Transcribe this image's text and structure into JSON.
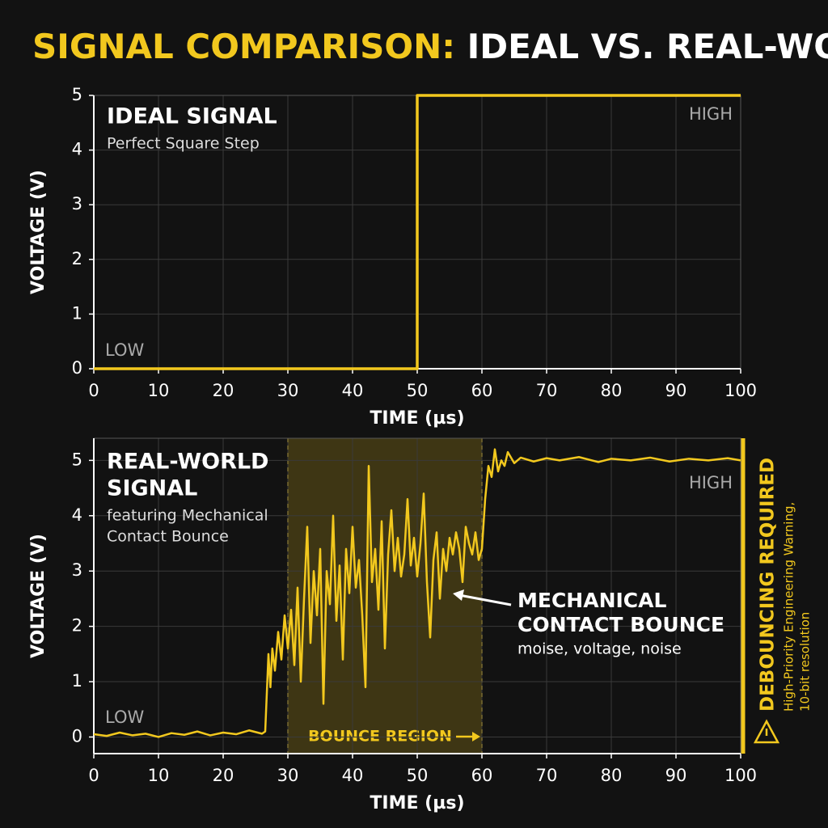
{
  "title": {
    "highlight": "SIGNAL COMPARISON:",
    "rest": "IDEAL VS. REAL-WORLD"
  },
  "chart_data": [
    {
      "type": "line",
      "xlabel": "TIME (µs)",
      "ylabel": "VOLTAGE (V)",
      "x": [
        0,
        50,
        50,
        100
      ],
      "series": [
        {
          "color": "#f2c81e",
          "values": [
            0,
            0,
            5,
            5
          ]
        }
      ],
      "xlim": [
        0,
        100
      ],
      "xticks": [
        0,
        10,
        20,
        30,
        40,
        50,
        60,
        70,
        80,
        90,
        100
      ],
      "ylim": [
        0,
        5
      ],
      "yticks": [
        0,
        1,
        2,
        3,
        4,
        5
      ],
      "grid": true,
      "panel_title": [
        "IDEAL SIGNAL"
      ],
      "panel_subtitle": [
        "Perfect Square Step"
      ],
      "high_label": "HIGH",
      "low_label": "LOW"
    },
    {
      "type": "line",
      "xlabel": "TIME (µs)",
      "ylabel": "VOLTAGE (V)",
      "x": [
        0,
        2,
        4,
        6,
        8,
        10,
        12,
        14,
        16,
        18,
        20,
        22,
        24,
        26,
        26.5,
        27,
        27.3,
        27.6,
        28,
        28.5,
        29,
        29.5,
        30,
        30.5,
        31,
        31.5,
        32,
        32.5,
        33,
        33.5,
        34,
        34.5,
        35,
        35.5,
        36,
        36.5,
        37,
        37.5,
        38,
        38.5,
        39,
        39.5,
        40,
        40.5,
        41,
        41.5,
        42,
        42.5,
        43,
        43.5,
        44,
        44.5,
        45,
        45.5,
        46,
        46.5,
        47,
        47.5,
        48,
        48.5,
        49,
        49.5,
        50,
        50.5,
        51,
        51.5,
        52,
        52.5,
        53,
        53.5,
        54,
        54.5,
        55,
        55.5,
        56,
        56.5,
        57,
        57.5,
        58,
        58.5,
        59,
        59.5,
        60,
        60.5,
        61,
        61.5,
        62,
        62.5,
        63,
        63.5,
        64,
        65,
        66,
        68,
        70,
        72,
        75,
        78,
        80,
        83,
        86,
        89,
        92,
        95,
        98,
        100
      ],
      "series": [
        {
          "color": "#f2c81e",
          "values": [
            0.05,
            0.02,
            0.08,
            0.03,
            0.06,
            0.0,
            0.07,
            0.04,
            0.1,
            0.03,
            0.08,
            0.05,
            0.12,
            0.06,
            0.1,
            1.5,
            0.9,
            1.6,
            1.2,
            1.9,
            1.4,
            2.2,
            1.6,
            2.3,
            1.3,
            2.7,
            1.0,
            2.5,
            3.8,
            1.7,
            3.0,
            2.2,
            3.4,
            0.6,
            3.0,
            2.4,
            4.0,
            2.1,
            3.1,
            1.4,
            3.4,
            2.6,
            3.8,
            2.7,
            3.2,
            2.2,
            0.9,
            4.9,
            2.8,
            3.4,
            2.3,
            3.9,
            1.6,
            3.3,
            4.1,
            3.0,
            3.6,
            2.9,
            3.3,
            4.3,
            3.1,
            3.6,
            2.9,
            3.5,
            4.4,
            2.8,
            1.8,
            3.2,
            3.7,
            2.5,
            3.4,
            3.0,
            3.6,
            3.3,
            3.7,
            3.4,
            2.8,
            3.8,
            3.5,
            3.3,
            3.7,
            3.2,
            3.4,
            4.3,
            4.9,
            4.7,
            5.2,
            4.8,
            5.0,
            4.9,
            5.15,
            4.95,
            5.05,
            4.98,
            5.04,
            5.0,
            5.06,
            4.97,
            5.03,
            5.0,
            5.05,
            4.98,
            5.03,
            5.0,
            5.04,
            5.0
          ]
        }
      ],
      "xlim": [
        0,
        100
      ],
      "xticks": [
        0,
        10,
        20,
        30,
        40,
        50,
        60,
        70,
        80,
        90,
        100
      ],
      "ylim": [
        -0.3,
        5.4
      ],
      "yticks": [
        0,
        1,
        2,
        3,
        4,
        5
      ],
      "grid": true,
      "panel_title": [
        "REAL-WORLD",
        "SIGNAL"
      ],
      "panel_subtitle": [
        "featuring Mechanical",
        "Contact Bounce"
      ],
      "high_label": "HIGH",
      "low_label": "LOW",
      "region": {
        "label": "BOUNCE REGION",
        "x": [
          30,
          60
        ]
      },
      "callout_title": [
        "MECHANICAL",
        "CONTACT BOUNCE"
      ],
      "callout_text": "moise, voltage, noise",
      "warning_title": "DEBOUNCING REQUIRED",
      "warning_text": [
        "High-Priority Engineering Warning,",
        "10-bit resolution"
      ]
    }
  ]
}
